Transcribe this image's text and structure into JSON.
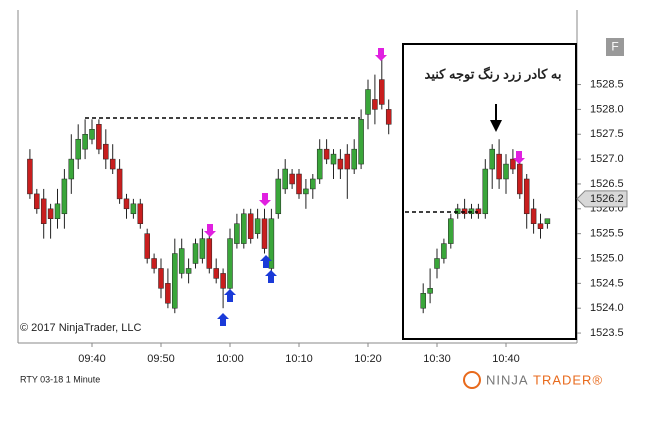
{
  "chart_data": {
    "type": "candlestick",
    "instrument": "RTY 03-18 1 Minute",
    "copyright": "© 2017 NinjaTrader, LLC",
    "annotation": "به کادر زرد رنگ توجه کنید",
    "button": "F",
    "logo_left": "NINJA",
    "logo_right": "TRADER®",
    "last_price": 1526.2,
    "up_color": "#3aa63a",
    "down_color": "#c81e1e",
    "categories": [
      null,
      null,
      null,
      null,
      null,
      null,
      null,
      null,
      null,
      "09:40",
      null,
      null,
      null,
      null,
      null,
      null,
      null,
      null,
      null,
      "09:50",
      null,
      null,
      null,
      null,
      null,
      null,
      null,
      null,
      null,
      "10:00",
      null,
      null,
      null,
      null,
      null,
      null,
      null,
      null,
      null,
      "10:10",
      null,
      null,
      null,
      null,
      null,
      null,
      null,
      null,
      null,
      "10:20",
      null,
      null,
      null,
      null,
      null,
      null,
      null,
      null,
      null,
      "10:30",
      null,
      null,
      null,
      null,
      null,
      null,
      null,
      null,
      null,
      "10:40",
      null,
      null,
      null,
      null,
      null,
      null
    ],
    "open": [
      1527.0,
      1526.3,
      1526.2,
      1526.0,
      1525.8,
      1525.9,
      1526.6,
      1527.0,
      1527.2,
      1527.4,
      1527.7,
      1527.3,
      1527.0,
      1526.8,
      1526.2,
      1525.9,
      1526.1,
      1525.5,
      1525.0,
      1524.8,
      1524.5,
      1524.0,
      1524.7,
      1524.7,
      1524.9,
      1525.0,
      1525.4,
      1524.8,
      1524.7,
      1524.4,
      1525.3,
      1525.3,
      1525.9,
      1525.5,
      1525.8,
      1524.8,
      1525.9,
      1526.4,
      1526.7,
      1526.7,
      1526.3,
      1526.4,
      1526.6,
      1527.2,
      1526.9,
      1527.0,
      1527.1,
      1526.8,
      1526.9,
      1527.9,
      1528.2,
      1528.6,
      1528.0,
      null,
      null,
      null,
      null,
      1524.0,
      1524.3,
      1524.8,
      1525.0,
      1525.3,
      1525.9,
      1526.0,
      1525.9,
      1526.0,
      1525.9,
      1526.8,
      1527.1,
      1526.6,
      1527.0,
      1526.9,
      1526.6,
      1526.0,
      1525.7,
      1525.7
    ],
    "high": [
      1527.2,
      1526.4,
      1526.4,
      1526.1,
      1526.4,
      1526.8,
      1527.5,
      1527.7,
      1527.8,
      1527.8,
      1527.8,
      1527.6,
      1527.3,
      1527.0,
      1526.3,
      1526.2,
      1526.2,
      1525.6,
      1525.1,
      1525.0,
      1524.8,
      1525.4,
      1525.4,
      1525.0,
      1525.4,
      1525.6,
      1525.5,
      1525.0,
      1524.8,
      1525.6,
      1525.9,
      1526.0,
      1526.0,
      1526.0,
      1526.0,
      1526.0,
      1526.8,
      1527.0,
      1526.8,
      1526.8,
      1526.6,
      1526.7,
      1527.4,
      1527.4,
      1527.2,
      1527.2,
      1527.3,
      1527.4,
      1528.0,
      1528.6,
      1528.7,
      1529.0,
      1528.2,
      null,
      null,
      null,
      null,
      1524.5,
      1524.8,
      1525.2,
      1525.4,
      1525.9,
      1526.1,
      1526.2,
      1526.1,
      1526.1,
      1527.0,
      1527.3,
      1527.4,
      1527.1,
      1527.2,
      1527.0,
      1526.7,
      1526.2,
      1525.9,
      1525.8
    ],
    "low": [
      1526.2,
      1525.9,
      1525.4,
      1525.4,
      1525.6,
      1525.6,
      1526.3,
      1526.8,
      1527.0,
      1527.3,
      1527.1,
      1526.8,
      1526.7,
      1526.1,
      1525.8,
      1525.8,
      1525.6,
      1524.9,
      1524.7,
      1524.2,
      1524.0,
      1523.9,
      1524.6,
      1524.5,
      1524.8,
      1524.9,
      1524.7,
      1524.5,
      1524.0,
      1524.2,
      1525.2,
      1525.2,
      1525.3,
      1525.4,
      1525.1,
      1524.6,
      1525.8,
      1526.3,
      1526.4,
      1526.2,
      1526.0,
      1526.2,
      1526.5,
      1526.9,
      1526.6,
      1526.6,
      1526.2,
      1526.7,
      1526.8,
      1527.6,
      1527.7,
      1528.0,
      1527.5,
      null,
      null,
      null,
      null,
      1523.9,
      1524.1,
      1524.6,
      1524.9,
      1525.2,
      1525.8,
      1525.8,
      1525.8,
      1525.8,
      1525.8,
      1526.4,
      1526.4,
      1526.3,
      1526.7,
      1526.2,
      1525.6,
      1525.5,
      1525.4,
      1525.6
    ],
    "close": [
      1526.3,
      1526.0,
      1525.7,
      1525.8,
      1526.1,
      1526.6,
      1527.0,
      1527.4,
      1527.5,
      1527.6,
      1527.2,
      1527.0,
      1526.8,
      1526.2,
      1526.0,
      1526.1,
      1525.7,
      1525.0,
      1524.8,
      1524.4,
      1524.1,
      1525.1,
      1525.2,
      1524.8,
      1525.3,
      1525.4,
      1524.8,
      1524.6,
      1524.4,
      1525.4,
      1525.7,
      1525.9,
      1525.4,
      1525.8,
      1525.2,
      1525.8,
      1526.6,
      1526.8,
      1526.5,
      1526.3,
      1526.4,
      1526.6,
      1527.2,
      1527.0,
      1527.1,
      1526.8,
      1526.8,
      1527.2,
      1527.8,
      1528.4,
      1528.0,
      1528.1,
      1527.7,
      null,
      null,
      null,
      null,
      1524.3,
      1524.4,
      1525.0,
      1525.3,
      1525.8,
      1526.0,
      1525.9,
      1526.0,
      1525.9,
      1526.8,
      1527.2,
      1526.6,
      1526.9,
      1526.8,
      1526.3,
      1525.9,
      1525.7,
      1525.6,
      1525.8
    ],
    "ylim": [
      1523.3,
      1530
    ],
    "yticks": [
      1523.5,
      {
        "value": 1524,
        "label": "1524.0"
      },
      1524.5,
      {
        "value": 1525,
        "label": "1525.0"
      },
      1525.5,
      {
        "value": 1526,
        "label": "1526.0"
      },
      1526.5,
      {
        "value": 1527,
        "label": "1527.0"
      },
      1527.5,
      {
        "value": 1528,
        "label": "1528.0"
      },
      1528.5
    ]
  }
}
